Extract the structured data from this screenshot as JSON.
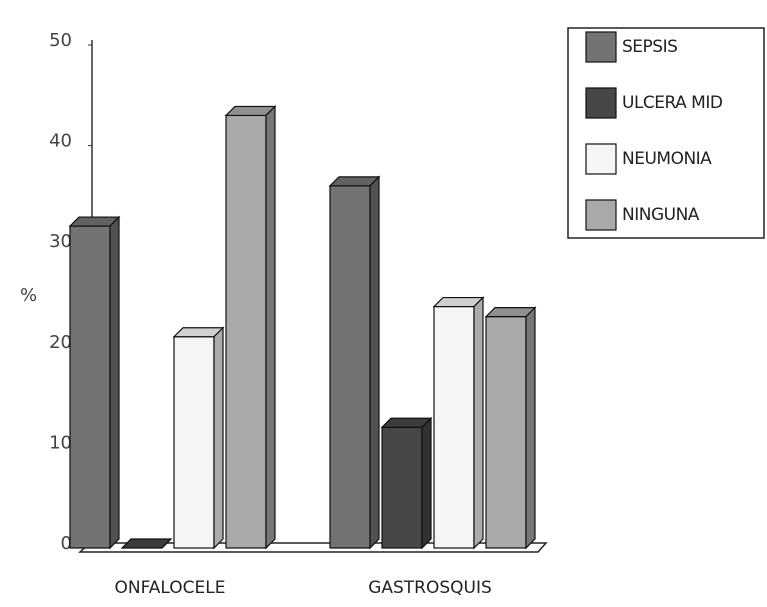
{
  "chart_data": {
    "type": "bar3d",
    "y_label": "%",
    "categories": [
      "ONFALOCELE",
      "GASTROSQUIS"
    ],
    "series": [
      {
        "name": "SEPSIS",
        "color": "#737373",
        "values": [
          32,
          36
        ]
      },
      {
        "name": "ULCERA MID",
        "color": "#474747",
        "values": [
          0,
          12
        ]
      },
      {
        "name": "NEUMONIA",
        "color": "#f5f5f5",
        "values": [
          21,
          24
        ]
      },
      {
        "name": "NINGUNA",
        "color": "#a9a9a9",
        "values": [
          43,
          23
        ]
      }
    ],
    "ylim": [
      0,
      50
    ],
    "yticks": [
      0,
      10,
      20,
      30,
      40,
      50
    ],
    "legend": "upper right"
  }
}
